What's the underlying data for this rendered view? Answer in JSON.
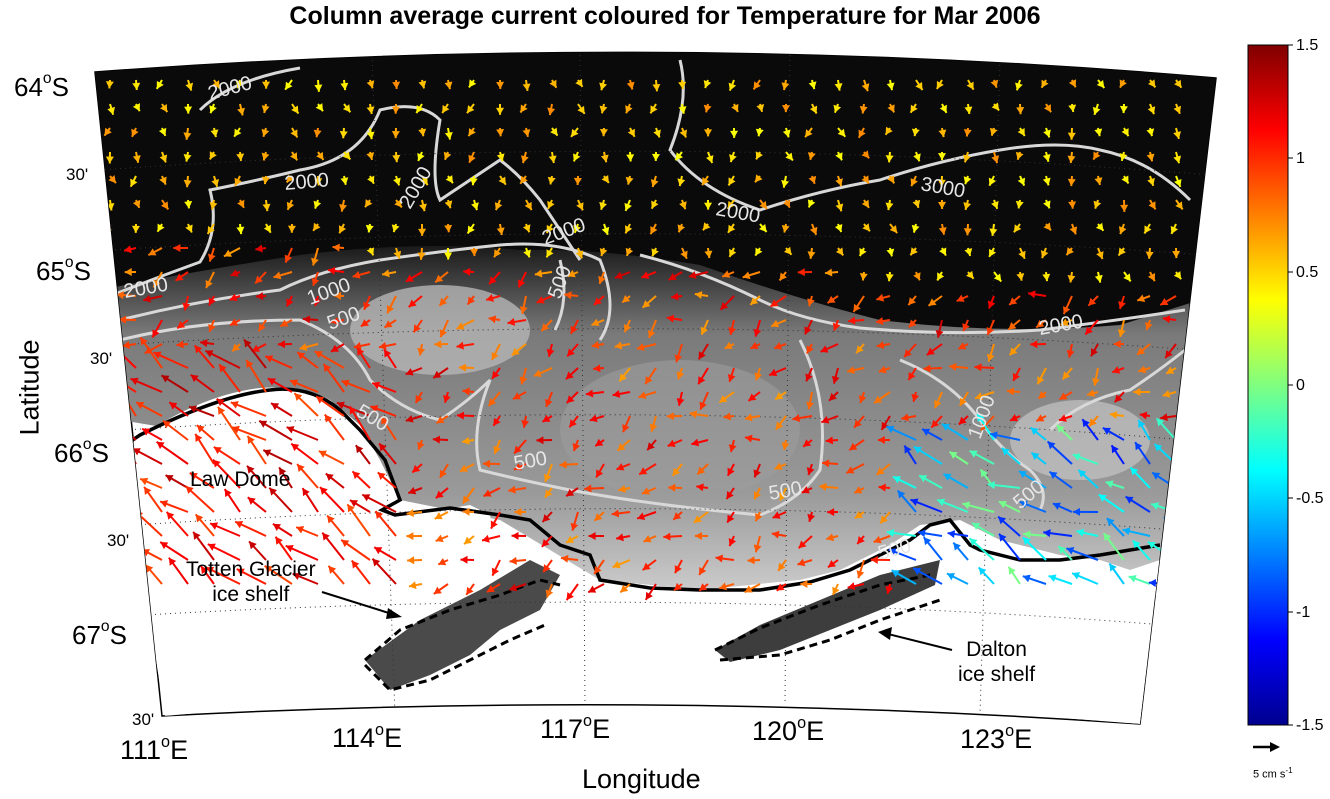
{
  "title": "Column average current coloured for Temperature for Mar 2006",
  "axes": {
    "xlabel": "Longitude",
    "ylabel": "Latitude",
    "lat_ticks": [
      {
        "text": "64",
        "suffix": "S",
        "major": true
      },
      {
        "text": "30'",
        "suffix": "",
        "major": false
      },
      {
        "text": "65",
        "suffix": "S",
        "major": true
      },
      {
        "text": "30'",
        "suffix": "",
        "major": false
      },
      {
        "text": "66",
        "suffix": "S",
        "major": true
      },
      {
        "text": "30'",
        "suffix": "",
        "major": false
      },
      {
        "text": "67",
        "suffix": "S",
        "major": true
      },
      {
        "text": "30'",
        "suffix": "",
        "major": false
      }
    ],
    "lon_ticks": [
      {
        "text": "111",
        "suffix": "E"
      },
      {
        "text": "114",
        "suffix": "E"
      },
      {
        "text": "117",
        "suffix": "E"
      },
      {
        "text": "120",
        "suffix": "E"
      },
      {
        "text": "123",
        "suffix": "E"
      }
    ]
  },
  "annotations": {
    "law_dome": "Law Dome",
    "totten_line1": "Totten Glacier",
    "totten_line2": "ice shelf",
    "dalton_line1": "Dalton",
    "dalton_line2": "ice shelf"
  },
  "contour_labels": [
    "2000",
    "2000",
    "2000",
    "2000",
    "2000",
    "2000",
    "3000",
    "1000",
    "500",
    "500",
    "500",
    "500",
    "500",
    "1000",
    "500",
    "500",
    "2000"
  ],
  "colorbar": {
    "min": -1.5,
    "max": 1.5,
    "ticks": [
      "1.5",
      "1",
      "0.5",
      "0",
      "-0.5",
      "-1",
      "-1.5"
    ],
    "colormap": "jet"
  },
  "vector_scale": {
    "label": "5 cm s",
    "exponent": "-1"
  },
  "colors": {
    "deep_ocean": "#0a0a0a",
    "shelf_gray": "#8a8a8a",
    "contour": "#d8d8d8",
    "coast": "#000000"
  }
}
